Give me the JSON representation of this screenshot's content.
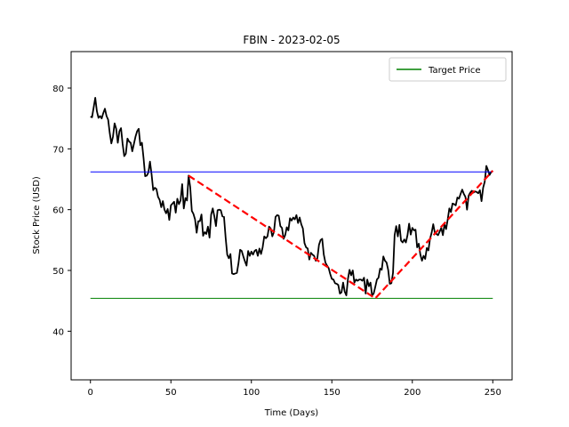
{
  "chart_data": {
    "type": "line",
    "title": "FBIN - 2023-02-05",
    "xlabel": "Time (Days)",
    "ylabel": "Stock Price (USD)",
    "xlim": [
      -12,
      262
    ],
    "ylim": [
      32,
      86
    ],
    "xticks": [
      0,
      50,
      100,
      150,
      200,
      250
    ],
    "yticks": [
      40,
      50,
      60,
      70,
      80
    ],
    "grid": false,
    "legend": {
      "placement": "top-right",
      "entries": [
        "Target Price"
      ]
    },
    "series": [
      {
        "color": "#000000",
        "style": "solid",
        "points": [
          [
            0,
            75.3
          ],
          [
            1,
            75.2
          ],
          [
            2,
            76.8
          ],
          [
            3,
            78.4
          ],
          [
            4,
            76.2
          ],
          [
            5,
            75.1
          ],
          [
            6,
            75.4
          ],
          [
            7,
            75.0
          ],
          [
            8,
            75.9
          ],
          [
            9,
            76.6
          ],
          [
            10,
            75.4
          ],
          [
            11,
            74.8
          ],
          [
            12,
            72.6
          ],
          [
            13,
            70.9
          ],
          [
            14,
            72.0
          ],
          [
            15,
            74.2
          ],
          [
            16,
            73.3
          ],
          [
            17,
            71.0
          ],
          [
            18,
            72.9
          ],
          [
            19,
            73.4
          ],
          [
            20,
            70.8
          ],
          [
            21,
            68.8
          ],
          [
            22,
            69.2
          ],
          [
            23,
            71.7
          ],
          [
            24,
            71.2
          ],
          [
            25,
            71.0
          ],
          [
            26,
            69.6
          ],
          [
            27,
            70.8
          ],
          [
            28,
            72.0
          ],
          [
            29,
            72.9
          ],
          [
            30,
            73.3
          ],
          [
            31,
            70.6
          ],
          [
            32,
            71.0
          ],
          [
            33,
            68.5
          ],
          [
            34,
            65.5
          ],
          [
            35,
            65.6
          ],
          [
            36,
            66.1
          ],
          [
            37,
            67.9
          ],
          [
            38,
            65.8
          ],
          [
            39,
            63.2
          ],
          [
            40,
            63.6
          ],
          [
            41,
            63.4
          ],
          [
            42,
            62.1
          ],
          [
            43,
            61.6
          ],
          [
            44,
            60.4
          ],
          [
            45,
            61.4
          ],
          [
            46,
            60.0
          ],
          [
            47,
            59.4
          ],
          [
            48,
            60.1
          ],
          [
            49,
            58.3
          ],
          [
            50,
            60.7
          ],
          [
            51,
            61.0
          ],
          [
            52,
            61.3
          ],
          [
            53,
            59.5
          ],
          [
            54,
            61.8
          ],
          [
            55,
            60.9
          ],
          [
            56,
            61.5
          ],
          [
            57,
            64.2
          ],
          [
            58,
            60.2
          ],
          [
            59,
            61.9
          ],
          [
            60,
            61.5
          ],
          [
            61,
            65.6
          ],
          [
            62,
            63.7
          ],
          [
            63,
            59.8
          ],
          [
            64,
            59.3
          ],
          [
            65,
            58.4
          ],
          [
            66,
            56.2
          ],
          [
            67,
            58.1
          ],
          [
            68,
            58.1
          ],
          [
            69,
            59.2
          ],
          [
            70,
            55.7
          ],
          [
            71,
            56.3
          ],
          [
            72,
            56.0
          ],
          [
            73,
            57.2
          ],
          [
            74,
            55.4
          ],
          [
            75,
            59.2
          ],
          [
            76,
            60.2
          ],
          [
            77,
            58.9
          ],
          [
            78,
            57.3
          ],
          [
            79,
            59.9
          ],
          [
            80,
            60.0
          ],
          [
            81,
            59.9
          ],
          [
            82,
            58.9
          ],
          [
            83,
            58.8
          ],
          [
            84,
            55.4
          ],
          [
            85,
            52.6
          ],
          [
            86,
            52.0
          ],
          [
            87,
            52.7
          ],
          [
            88,
            49.5
          ],
          [
            89,
            49.4
          ],
          [
            90,
            49.5
          ],
          [
            91,
            49.6
          ],
          [
            92,
            51.2
          ],
          [
            93,
            53.4
          ],
          [
            94,
            53.2
          ],
          [
            95,
            52.3
          ],
          [
            96,
            51.5
          ],
          [
            97,
            50.8
          ],
          [
            98,
            53.2
          ],
          [
            99,
            52.4
          ],
          [
            100,
            53.1
          ],
          [
            101,
            52.6
          ],
          [
            102,
            53.2
          ],
          [
            103,
            53.4
          ],
          [
            104,
            52.4
          ],
          [
            105,
            53.6
          ],
          [
            106,
            52.7
          ],
          [
            107,
            53.8
          ],
          [
            108,
            55.6
          ],
          [
            109,
            55.3
          ],
          [
            110,
            55.6
          ],
          [
            111,
            57.2
          ],
          [
            112,
            56.9
          ],
          [
            113,
            55.6
          ],
          [
            114,
            56.3
          ],
          [
            115,
            58.8
          ],
          [
            116,
            59.1
          ],
          [
            117,
            59.0
          ],
          [
            118,
            57.3
          ],
          [
            119,
            57.0
          ],
          [
            120,
            55.2
          ],
          [
            121,
            55.8
          ],
          [
            122,
            57.1
          ],
          [
            123,
            56.6
          ],
          [
            124,
            58.6
          ],
          [
            125,
            58.2
          ],
          [
            126,
            58.7
          ],
          [
            127,
            58.4
          ],
          [
            128,
            59.1
          ],
          [
            129,
            57.8
          ],
          [
            130,
            58.7
          ],
          [
            131,
            57.6
          ],
          [
            132,
            56.9
          ],
          [
            133,
            54.5
          ],
          [
            134,
            53.8
          ],
          [
            135,
            53.6
          ],
          [
            136,
            51.8
          ],
          [
            137,
            52.9
          ],
          [
            138,
            52.6
          ],
          [
            139,
            52.4
          ],
          [
            140,
            51.6
          ],
          [
            141,
            52.0
          ],
          [
            142,
            54.2
          ],
          [
            143,
            55.0
          ],
          [
            144,
            55.2
          ],
          [
            145,
            52.6
          ],
          [
            146,
            51.3
          ],
          [
            147,
            50.8
          ],
          [
            148,
            50.4
          ],
          [
            149,
            49.4
          ],
          [
            150,
            48.6
          ],
          [
            151,
            48.5
          ],
          [
            152,
            47.9
          ],
          [
            153,
            47.8
          ],
          [
            154,
            47.6
          ],
          [
            155,
            46.2
          ],
          [
            156,
            46.4
          ],
          [
            157,
            48.0
          ],
          [
            158,
            46.5
          ],
          [
            159,
            45.9
          ],
          [
            160,
            48.6
          ],
          [
            161,
            50.1
          ],
          [
            162,
            49.2
          ],
          [
            163,
            50.0
          ],
          [
            164,
            48.0
          ],
          [
            165,
            48.5
          ],
          [
            166,
            48.3
          ],
          [
            167,
            48.5
          ],
          [
            168,
            48.5
          ],
          [
            169,
            48.3
          ],
          [
            170,
            48.8
          ],
          [
            171,
            46.2
          ],
          [
            172,
            48.5
          ],
          [
            173,
            47.4
          ],
          [
            174,
            48.0
          ],
          [
            175,
            45.9
          ],
          [
            176,
            46.2
          ],
          [
            177,
            47.3
          ],
          [
            178,
            48.5
          ],
          [
            179,
            48.8
          ],
          [
            180,
            50.3
          ],
          [
            181,
            50.1
          ],
          [
            182,
            52.3
          ],
          [
            183,
            51.6
          ],
          [
            184,
            51.3
          ],
          [
            185,
            50.1
          ],
          [
            186,
            47.8
          ],
          [
            187,
            47.9
          ],
          [
            188,
            49.6
          ],
          [
            189,
            55.8
          ],
          [
            190,
            57.3
          ],
          [
            191,
            55.6
          ],
          [
            192,
            57.5
          ],
          [
            193,
            54.9
          ],
          [
            194,
            54.6
          ],
          [
            195,
            55.1
          ],
          [
            196,
            54.6
          ],
          [
            197,
            55.8
          ],
          [
            198,
            57.7
          ],
          [
            199,
            55.9
          ],
          [
            200,
            57.0
          ],
          [
            201,
            56.6
          ],
          [
            202,
            56.7
          ],
          [
            203,
            53.8
          ],
          [
            204,
            54.4
          ],
          [
            205,
            52.6
          ],
          [
            206,
            51.6
          ],
          [
            207,
            52.4
          ],
          [
            208,
            51.9
          ],
          [
            209,
            53.7
          ],
          [
            210,
            53.3
          ],
          [
            211,
            55.2
          ],
          [
            212,
            56.2
          ],
          [
            213,
            57.6
          ],
          [
            214,
            56.2
          ],
          [
            215,
            56.0
          ],
          [
            216,
            55.8
          ],
          [
            217,
            56.4
          ],
          [
            218,
            57.0
          ],
          [
            219,
            55.8
          ],
          [
            220,
            57.6
          ],
          [
            221,
            56.8
          ],
          [
            222,
            58.4
          ],
          [
            223,
            60.2
          ],
          [
            224,
            59.6
          ],
          [
            225,
            61.0
          ],
          [
            226,
            60.9
          ],
          [
            227,
            60.7
          ],
          [
            228,
            62.0
          ],
          [
            229,
            61.8
          ],
          [
            230,
            62.6
          ],
          [
            231,
            63.3
          ],
          [
            232,
            62.6
          ],
          [
            233,
            62.1
          ],
          [
            234,
            60.0
          ],
          [
            235,
            62.3
          ],
          [
            236,
            62.8
          ],
          [
            237,
            63.1
          ],
          [
            238,
            62.8
          ],
          [
            239,
            63.0
          ],
          [
            240,
            62.9
          ],
          [
            241,
            62.7
          ],
          [
            242,
            63.2
          ],
          [
            243,
            61.4
          ],
          [
            244,
            63.6
          ],
          [
            245,
            64.6
          ],
          [
            246,
            67.2
          ],
          [
            247,
            66.5
          ],
          [
            248,
            65.7
          ],
          [
            249,
            66.2
          ],
          [
            250,
            66.4
          ]
        ]
      },
      {
        "color": "#0000ff",
        "style": "solid",
        "points": [
          [
            0,
            66.2
          ],
          [
            250,
            66.2
          ]
        ]
      },
      {
        "name": "Target Price",
        "color": "#008000",
        "style": "solid",
        "points": [
          [
            0,
            45.4
          ],
          [
            250,
            45.4
          ]
        ]
      },
      {
        "color": "#ff0000",
        "style": "dashed",
        "points": [
          [
            61,
            65.6
          ],
          [
            177,
            45.4
          ],
          [
            250,
            66.4
          ]
        ]
      }
    ]
  }
}
